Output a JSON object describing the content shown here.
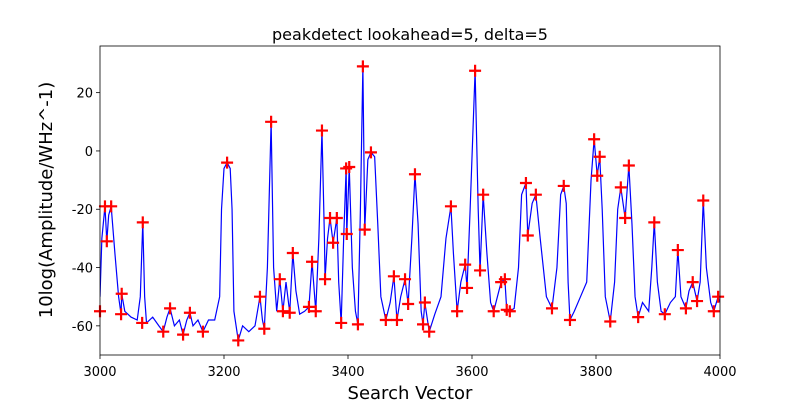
{
  "chart_data": {
    "type": "line",
    "title": "peakdetect lookahead=5, delta=5",
    "x_label": "Search Vector",
    "y_label": "10log(Amplitude/WHz^-1)",
    "xlim": [
      3000,
      4000
    ],
    "ylim": [
      -70,
      36
    ],
    "xticks": [
      3000,
      3200,
      3400,
      3600,
      3800,
      4000
    ],
    "yticks": [
      -60,
      -40,
      -20,
      0,
      20
    ],
    "grid": false,
    "series": [
      {
        "style": "line",
        "color": "#0000ff",
        "x": [
          3000,
          3003,
          3008,
          3011,
          3014,
          3018,
          3024,
          3030,
          3034,
          3035,
          3040,
          3050,
          3060,
          3065,
          3069,
          3072,
          3075,
          3085,
          3095,
          3102,
          3108,
          3113,
          3120,
          3128,
          3134,
          3140,
          3145,
          3150,
          3158,
          3166,
          3175,
          3185,
          3193,
          3196,
          3200,
          3205,
          3210,
          3213,
          3216,
          3223,
          3230,
          3240,
          3250,
          3258,
          3262,
          3265,
          3270,
          3276,
          3280,
          3285,
          3290,
          3295,
          3300,
          3306,
          3311,
          3316,
          3322,
          3330,
          3337,
          3342,
          3348,
          3353,
          3358,
          3362,
          3363,
          3367,
          3371,
          3376,
          3382,
          3385,
          3389,
          3393,
          3397,
          3398,
          3402,
          3407,
          3412,
          3416,
          3420,
          3424,
          3427,
          3432,
          3437,
          3443,
          3448,
          3453,
          3461,
          3468,
          3474,
          3479,
          3485,
          3492,
          3497,
          3503,
          3508,
          3513,
          3518,
          3521,
          3524,
          3531,
          3540,
          3550,
          3558,
          3566,
          3570,
          3576,
          3582,
          3589,
          3592,
          3597,
          3605,
          3610,
          3613,
          3618,
          3624,
          3630,
          3635,
          3641,
          3647,
          3653,
          3656,
          3661,
          3668,
          3675,
          3680,
          3687,
          3690,
          3697,
          3703,
          3710,
          3720,
          3729,
          3737,
          3743,
          3748,
          3752,
          3755,
          3758,
          3765,
          3775,
          3785,
          3792,
          3797,
          3802,
          3806,
          3810,
          3815,
          3823,
          3830,
          3835,
          3840,
          3847,
          3853,
          3858,
          3863,
          3868,
          3875,
          3885,
          3890,
          3894,
          3899,
          3905,
          3911,
          3920,
          3928,
          3932,
          3937,
          3945,
          3950,
          3956,
          3963,
          3968,
          3973,
          3978,
          3985,
          3990,
          3997,
          4000
        ],
        "values": [
          -50,
          -30,
          -19,
          -31,
          -22,
          -19,
          -35,
          -50,
          -56,
          -49,
          -55,
          -57,
          -58,
          -50,
          -24.5,
          -50,
          -59,
          -57,
          -60,
          -62,
          -57,
          -54,
          -60,
          -58,
          -63,
          -58,
          -55.5,
          -60,
          -58,
          -62,
          -58,
          -58,
          -50,
          -20,
          -6,
          -4,
          -6,
          -20,
          -55,
          -65,
          -60,
          -62,
          -60,
          -50,
          -58,
          -61,
          -40,
          10,
          -40,
          -55,
          -44,
          -55,
          -45,
          -55.5,
          -35,
          -48,
          -56,
          -55,
          -53.5,
          -38,
          -55,
          -30,
          7,
          -30,
          -44,
          -30,
          -23,
          -31.5,
          -23,
          -45,
          -59,
          -30,
          -6,
          -28.5,
          -5.5,
          -40,
          -55,
          -59.5,
          -20,
          29,
          -27,
          -3,
          -0.5,
          -2,
          -25,
          -50,
          -58,
          -52,
          -43,
          -58,
          -50,
          -44,
          -52.5,
          -30,
          -8,
          -25,
          -55,
          -59.5,
          -52,
          -62,
          -56,
          -50,
          -30,
          -19,
          -35,
          -55,
          -45,
          -39,
          -47,
          -20,
          27.5,
          -20,
          -41,
          -15,
          -35,
          -52,
          -55,
          -50,
          -45,
          -44,
          -54.5,
          -55,
          -54,
          -40,
          -15,
          -11,
          -29,
          -18,
          -15,
          -30,
          -50,
          -54,
          -40,
          -15,
          -12,
          -18,
          -45,
          -58,
          -55,
          -50,
          -45,
          -10,
          4,
          -8.5,
          -2,
          -20,
          -50,
          -58.5,
          -45,
          -20,
          -12.5,
          -23,
          -5,
          -25,
          -50,
          -57,
          -52,
          -55,
          -40,
          -24.5,
          -45,
          -55,
          -56,
          -52,
          -50,
          -34,
          -50,
          -54,
          -48,
          -45,
          -51.5,
          -45,
          -17,
          -40,
          -52,
          -55,
          -50,
          -52
        ]
      },
      {
        "style": "plus",
        "color": "#ff0000",
        "x": [
          3000,
          3008,
          3018,
          3011,
          3035,
          3034,
          3069,
          3068,
          3102,
          3113,
          3134,
          3145,
          3166,
          3205,
          3223,
          3258,
          3265,
          3276,
          3290,
          3295,
          3311,
          3306,
          3342,
          3337,
          3348,
          3358,
          3363,
          3371,
          3376,
          3382,
          3389,
          3397,
          3402,
          3398,
          3416,
          3424,
          3427,
          3437,
          3461,
          3474,
          3479,
          3492,
          3497,
          3508,
          3521,
          3524,
          3531,
          3566,
          3576,
          3589,
          3592,
          3605,
          3613,
          3618,
          3635,
          3647,
          3653,
          3656,
          3661,
          3687,
          3690,
          3703,
          3729,
          3748,
          3758,
          3797,
          3802,
          3806,
          3823,
          3840,
          3847,
          3853,
          3868,
          3894,
          3911,
          3932,
          3945,
          3956,
          3963,
          3973,
          3990,
          3997
        ],
        "values": [
          -55,
          -19,
          -19,
          -31,
          -49,
          -56,
          -24.5,
          -59,
          -62,
          -54,
          -63,
          -55.5,
          -62,
          -4,
          -65,
          -50,
          -61,
          10,
          -44,
          -55,
          -35,
          -55.5,
          -38,
          -53.5,
          -55,
          7,
          -44,
          -23,
          -31.5,
          -23,
          -59,
          -6,
          -5.5,
          -28.5,
          -59.5,
          29,
          -27,
          -0.5,
          -58,
          -43,
          -58,
          -44,
          -52.5,
          -8,
          -59.5,
          -52,
          -62,
          -19,
          -55,
          -39,
          -47,
          27.5,
          -41,
          -15,
          -55,
          -45,
          -44,
          -54.5,
          -55,
          -11,
          -29,
          -15,
          -54,
          -12,
          -58,
          4,
          -8.5,
          -2,
          -58.5,
          -12.5,
          -23,
          -5,
          -57,
          -24.5,
          -56,
          -34,
          -54,
          -45,
          -51.5,
          -17,
          -55,
          -50
        ]
      }
    ]
  }
}
